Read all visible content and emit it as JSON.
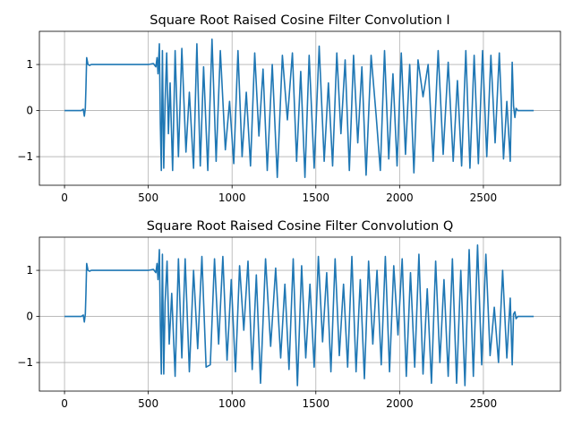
{
  "chart_data": [
    {
      "type": "line",
      "title": "Square Root Raised Cosine Filter Convolution I",
      "xlabel": "",
      "ylabel": "",
      "xlim": [
        -150,
        2960
      ],
      "ylim": [
        -1.62,
        1.72
      ],
      "xticks": [
        0,
        500,
        1000,
        1500,
        2000,
        2500
      ],
      "xtick_labels": [
        "0",
        "500",
        "1000",
        "1500",
        "2000",
        "2500"
      ],
      "yticks": [
        -1,
        0,
        1
      ],
      "ytick_labels": [
        "−1",
        "0",
        "1"
      ],
      "grid": true,
      "color": "#1f77b4",
      "series": [
        {
          "x": [
            0,
            60,
            100,
            112,
            118,
            124,
            128,
            132,
            140,
            150,
            160,
            170,
            200,
            300,
            400,
            500,
            530,
            545,
            552,
            558,
            566,
            572,
            578,
            584,
            592,
            600,
            610,
            620,
            630,
            645,
            660,
            680,
            700,
            725,
            745,
            770,
            790,
            810,
            830,
            855,
            880,
            905,
            930,
            960,
            985,
            1010,
            1035,
            1060,
            1085,
            1110,
            1135,
            1160,
            1185,
            1210,
            1240,
            1270,
            1300,
            1330,
            1360,
            1385,
            1410,
            1435,
            1460,
            1490,
            1520,
            1550,
            1575,
            1600,
            1625,
            1650,
            1675,
            1700,
            1725,
            1750,
            1775,
            1800,
            1830,
            1860,
            1885,
            1910,
            1935,
            1960,
            1985,
            2010,
            2035,
            2060,
            2085,
            2110,
            2140,
            2170,
            2200,
            2230,
            2260,
            2290,
            2320,
            2345,
            2370,
            2395,
            2420,
            2445,
            2470,
            2495,
            2520,
            2545,
            2570,
            2595,
            2620,
            2640,
            2660,
            2672,
            2680,
            2688,
            2695,
            2705,
            2720,
            2750,
            2800
          ],
          "y": [
            0,
            0,
            0,
            0.03,
            -0.12,
            0.05,
            0.5,
            1.15,
            1.0,
            0.98,
            1.0,
            1.0,
            1.0,
            1.0,
            1.0,
            1.0,
            1.02,
            0.95,
            1.15,
            0.8,
            1.45,
            -0.3,
            -1.3,
            1.3,
            -1.25,
            0.2,
            1.25,
            -0.5,
            0.6,
            -1.3,
            1.3,
            -1.0,
            1.35,
            -0.9,
            0.4,
            -1.25,
            1.45,
            -1.2,
            0.95,
            -1.3,
            1.55,
            -1.1,
            1.3,
            -0.85,
            0.2,
            -1.15,
            1.3,
            -1.0,
            0.4,
            -1.2,
            1.25,
            -0.55,
            0.9,
            -1.3,
            1.0,
            -1.45,
            1.2,
            -0.2,
            1.25,
            -1.1,
            0.85,
            -1.45,
            1.2,
            -1.25,
            1.4,
            -1.1,
            0.6,
            -1.2,
            1.25,
            -0.5,
            1.1,
            -1.3,
            1.2,
            -0.7,
            0.95,
            -1.4,
            1.2,
            -0.1,
            -1.3,
            1.3,
            -1.05,
            0.8,
            -1.2,
            1.25,
            -0.95,
            1.0,
            -1.35,
            1.1,
            0.3,
            1.0,
            -1.1,
            1.3,
            -0.95,
            1.05,
            -1.1,
            0.65,
            -1.2,
            1.3,
            -1.25,
            1.2,
            -1.15,
            1.3,
            -1.0,
            1.2,
            -0.7,
            1.25,
            -1.05,
            0.2,
            -1.1,
            1.05,
            0.1,
            -0.15,
            0.05,
            0.0,
            0.0,
            0.0,
            0.0
          ]
        }
      ]
    },
    {
      "type": "line",
      "title": "Square Root Raised Cosine Filter Convolution Q",
      "xlabel": "",
      "ylabel": "",
      "xlim": [
        -150,
        2960
      ],
      "ylim": [
        -1.62,
        1.72
      ],
      "xticks": [
        0,
        500,
        1000,
        1500,
        2000,
        2500
      ],
      "xtick_labels": [
        "0",
        "500",
        "1000",
        "1500",
        "2000",
        "2500"
      ],
      "yticks": [
        -1,
        0,
        1
      ],
      "ytick_labels": [
        "−1",
        "0",
        "1"
      ],
      "grid": true,
      "color": "#1f77b4",
      "series": [
        {
          "x": [
            0,
            60,
            100,
            112,
            118,
            124,
            128,
            132,
            140,
            150,
            160,
            170,
            200,
            300,
            400,
            500,
            530,
            545,
            552,
            558,
            566,
            572,
            578,
            584,
            592,
            600,
            612,
            625,
            640,
            660,
            680,
            700,
            720,
            745,
            770,
            795,
            820,
            845,
            870,
            895,
            920,
            945,
            970,
            995,
            1020,
            1045,
            1070,
            1095,
            1120,
            1145,
            1170,
            1200,
            1230,
            1260,
            1290,
            1315,
            1340,
            1365,
            1390,
            1415,
            1440,
            1465,
            1490,
            1515,
            1540,
            1565,
            1590,
            1615,
            1640,
            1665,
            1690,
            1715,
            1740,
            1765,
            1790,
            1815,
            1840,
            1865,
            1890,
            1915,
            1940,
            1965,
            1990,
            2015,
            2040,
            2065,
            2090,
            2115,
            2140,
            2165,
            2190,
            2215,
            2240,
            2265,
            2290,
            2315,
            2340,
            2365,
            2390,
            2415,
            2440,
            2465,
            2490,
            2515,
            2540,
            2565,
            2590,
            2615,
            2640,
            2660,
            2672,
            2680,
            2688,
            2695,
            2705,
            2720,
            2750,
            2800
          ],
          "y": [
            0,
            0,
            0,
            0.03,
            -0.12,
            0.05,
            0.5,
            1.15,
            1.0,
            0.98,
            1.0,
            1.0,
            1.0,
            1.0,
            1.0,
            1.0,
            1.02,
            0.95,
            1.15,
            0.8,
            1.45,
            -0.2,
            -1.25,
            1.35,
            -1.25,
            0.3,
            1.2,
            -0.6,
            0.5,
            -1.3,
            1.25,
            -0.9,
            1.25,
            -1.2,
            1.0,
            -0.7,
            1.3,
            -1.1,
            -1.05,
            1.25,
            -0.6,
            1.3,
            -0.95,
            0.8,
            -1.2,
            1.1,
            -0.3,
            1.2,
            -1.15,
            0.9,
            -1.45,
            1.25,
            -0.65,
            1.05,
            -0.9,
            0.7,
            -1.15,
            1.25,
            -1.5,
            1.1,
            -0.9,
            0.7,
            -1.1,
            1.3,
            -0.55,
            0.95,
            -1.2,
            1.25,
            -0.85,
            0.7,
            -1.1,
            1.3,
            -1.2,
            0.8,
            -1.35,
            1.2,
            -0.6,
            1.0,
            -1.05,
            1.3,
            -1.2,
            1.1,
            -0.4,
            1.25,
            -1.3,
            0.95,
            -1.1,
            1.35,
            -1.25,
            0.6,
            -1.45,
            1.2,
            -1.0,
            0.8,
            -1.3,
            1.25,
            -1.45,
            1.0,
            -1.5,
            1.45,
            -1.3,
            1.55,
            -1.05,
            1.35,
            -0.85,
            0.2,
            -1.0,
            1.0,
            -0.9,
            0.4,
            -1.05,
            0.05,
            0.1,
            -0.05,
            0.0,
            0.0,
            0.0,
            0.0
          ]
        }
      ]
    }
  ]
}
